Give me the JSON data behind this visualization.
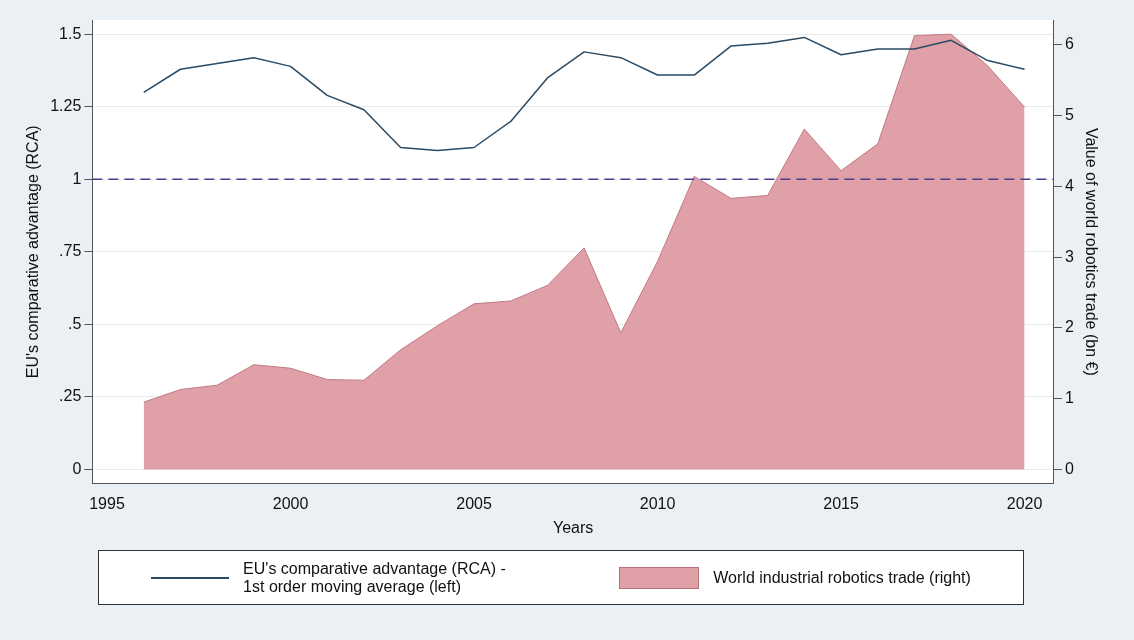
{
  "chart_data": {
    "type": "line",
    "xlabel": "Years",
    "ylabel": "EU's comparative advantage (RCA)",
    "y2label": "Value of world robotics trade (bn €)",
    "x": [
      1996,
      1997,
      1998,
      1999,
      2000,
      2001,
      2002,
      2003,
      2004,
      2005,
      2006,
      2007,
      2008,
      2009,
      2010,
      2011,
      2012,
      2013,
      2014,
      2015,
      2016,
      2017,
      2018,
      2019,
      2020
    ],
    "series": [
      {
        "name": "EU's comparative advantage (RCA) - 1st order moving average (left)",
        "type": "line",
        "color": "#2b4a63",
        "values": [
          1.3,
          1.38,
          1.4,
          1.42,
          1.39,
          1.29,
          1.24,
          1.11,
          1.1,
          1.11,
          1.2,
          1.35,
          1.44,
          1.42,
          1.36,
          1.36,
          1.46,
          1.47,
          1.49,
          1.43,
          1.45,
          1.45,
          1.48,
          1.41,
          1.38
        ]
      },
      {
        "name": "World industrial robotics trade (right)",
        "type": "area",
        "axis": "y2",
        "color": "#e0a0a7",
        "values": [
          0.95,
          1.13,
          1.19,
          1.48,
          1.43,
          1.27,
          1.26,
          1.69,
          2.03,
          2.34,
          2.38,
          2.6,
          3.13,
          1.93,
          2.94,
          4.14,
          3.83,
          3.87,
          4.81,
          4.22,
          4.6,
          6.13,
          6.15,
          5.7,
          5.12
        ]
      }
    ],
    "xlim": [
      1994.6,
      2020.8
    ],
    "xticks": [
      1995,
      2000,
      2005,
      2010,
      2015,
      2020
    ],
    "ylim": [
      -0.05,
      1.55
    ],
    "yticks": [
      0,
      {
        "value": 0.25,
        "label": ".25"
      },
      {
        "value": 0.5,
        "label": ".5"
      },
      {
        "value": 0.75,
        "label": ".75"
      },
      1,
      1.25,
      1.5
    ],
    "y2lim": [
      -0.2,
      6.35
    ],
    "y2ticks": [
      0,
      1,
      2,
      3,
      4,
      5,
      6
    ],
    "ref_lines": [
      {
        "axis": "y",
        "value": 1,
        "color": "#4a3c8f",
        "line_style": "dashed"
      }
    ],
    "grid": "y",
    "legend": "bottom",
    "marker": "none"
  }
}
